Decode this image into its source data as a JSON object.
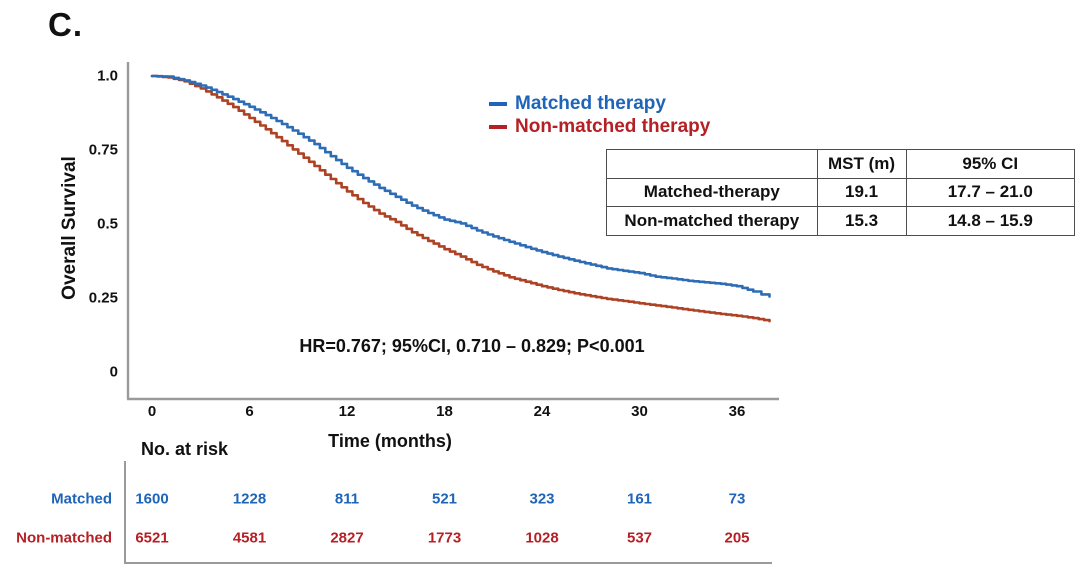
{
  "panel_label": "C.",
  "colors": {
    "matched_curve": "#2e6db5",
    "non_matched_curve": "#ad4224",
    "matched_text": "#1e64b8",
    "non_matched_text": "#b52025",
    "axis_line": "#9a9a9a"
  },
  "legend": [
    {
      "label": "Matched therapy",
      "color": "#1e64b8"
    },
    {
      "label": "Non-matched therapy",
      "color": "#b52025"
    }
  ],
  "annotation": "HR=0.767; 95%CI, 0.710 – 0.829; P<0.001",
  "stats_table": {
    "headers": [
      "",
      "MST (m)",
      "95% CI"
    ],
    "rows": [
      [
        "Matched-therapy",
        "19.1",
        "17.7 – 21.0"
      ],
      [
        "Non-matched therapy",
        "15.3",
        "14.8 – 15.9"
      ]
    ]
  },
  "axes": {
    "ylabel": "Overall Survival",
    "xlabel": "Time (months)",
    "yticks": [
      {
        "label": "1.0",
        "value": 1.0
      },
      {
        "label": "0.75",
        "value": 0.75
      },
      {
        "label": "0.5",
        "value": 0.5
      },
      {
        "label": "0.25",
        "value": 0.25
      },
      {
        "label": "0",
        "value": 0
      }
    ],
    "xticks": [
      {
        "label": "0",
        "value": 0
      },
      {
        "label": "6",
        "value": 6
      },
      {
        "label": "12",
        "value": 12
      },
      {
        "label": "18",
        "value": 18
      },
      {
        "label": "24",
        "value": 24
      },
      {
        "label": "30",
        "value": 30
      },
      {
        "label": "36",
        "value": 36
      }
    ]
  },
  "risk_table": {
    "title": "No. at risk",
    "time_columns": [
      0,
      6,
      12,
      18,
      24,
      30,
      36
    ],
    "rows": [
      {
        "label": "Matched",
        "color": "#1e64b8",
        "values": [
          "1600",
          "1228",
          "811",
          "521",
          "323",
          "161",
          "73"
        ]
      },
      {
        "label": "Non-matched",
        "color": "#b52025",
        "values": [
          "6521",
          "4581",
          "2827",
          "1773",
          "1028",
          "537",
          "205"
        ]
      }
    ]
  },
  "chart_data": {
    "type": "line",
    "style": "kaplan-meier-step",
    "title": "",
    "xlabel": "Time (months)",
    "ylabel": "Overall Survival",
    "xlim": [
      0,
      38.5
    ],
    "ylim": [
      0,
      1.0
    ],
    "grid": false,
    "legend_position": "upper right",
    "series": [
      {
        "name": "Matched therapy",
        "color": "#2e6db5",
        "median_survival_months": 19.1,
        "ci95": "17.7 – 21.0",
        "points": [
          [
            0,
            1.0
          ],
          [
            1,
            0.998
          ],
          [
            2,
            0.985
          ],
          [
            3,
            0.968
          ],
          [
            4,
            0.946
          ],
          [
            5,
            0.922
          ],
          [
            6,
            0.896
          ],
          [
            7,
            0.868
          ],
          [
            8,
            0.838
          ],
          [
            9,
            0.805
          ],
          [
            10,
            0.77
          ],
          [
            11,
            0.729
          ],
          [
            12,
            0.69
          ],
          [
            13,
            0.655
          ],
          [
            14,
            0.622
          ],
          [
            15,
            0.592
          ],
          [
            16,
            0.562
          ],
          [
            17,
            0.537
          ],
          [
            18,
            0.515
          ],
          [
            19,
            0.502
          ],
          [
            20,
            0.478
          ],
          [
            21,
            0.458
          ],
          [
            22,
            0.44
          ],
          [
            23,
            0.422
          ],
          [
            24,
            0.405
          ],
          [
            25,
            0.39
          ],
          [
            26,
            0.376
          ],
          [
            27,
            0.363
          ],
          [
            28,
            0.35
          ],
          [
            29,
            0.342
          ],
          [
            30,
            0.334
          ],
          [
            31,
            0.322
          ],
          [
            32,
            0.316
          ],
          [
            33,
            0.308
          ],
          [
            34,
            0.303
          ],
          [
            35,
            0.298
          ],
          [
            36,
            0.29
          ],
          [
            37,
            0.272
          ],
          [
            37.5,
            0.262
          ],
          [
            38,
            0.255
          ]
        ]
      },
      {
        "name": "Non-matched therapy",
        "color": "#ad4224",
        "median_survival_months": 15.3,
        "ci95": "14.8 – 15.9",
        "points": [
          [
            0,
            1.0
          ],
          [
            1,
            0.995
          ],
          [
            2,
            0.982
          ],
          [
            3,
            0.958
          ],
          [
            4,
            0.928
          ],
          [
            5,
            0.895
          ],
          [
            6,
            0.858
          ],
          [
            7,
            0.82
          ],
          [
            8,
            0.78
          ],
          [
            9,
            0.738
          ],
          [
            10,
            0.696
          ],
          [
            11,
            0.652
          ],
          [
            12,
            0.61
          ],
          [
            13,
            0.571
          ],
          [
            14,
            0.535
          ],
          [
            15,
            0.507
          ],
          [
            16,
            0.472
          ],
          [
            17,
            0.443
          ],
          [
            18,
            0.415
          ],
          [
            19,
            0.39
          ],
          [
            20,
            0.362
          ],
          [
            21,
            0.34
          ],
          [
            22,
            0.32
          ],
          [
            23,
            0.305
          ],
          [
            24,
            0.29
          ],
          [
            25,
            0.277
          ],
          [
            26,
            0.266
          ],
          [
            27,
            0.256
          ],
          [
            28,
            0.247
          ],
          [
            29,
            0.24
          ],
          [
            30,
            0.232
          ],
          [
            31,
            0.225
          ],
          [
            32,
            0.218
          ],
          [
            33,
            0.21
          ],
          [
            34,
            0.203
          ],
          [
            35,
            0.196
          ],
          [
            36,
            0.19
          ],
          [
            37,
            0.182
          ],
          [
            38,
            0.172
          ]
        ]
      }
    ],
    "hazard_ratio_annotation": "HR=0.767; 95%CI, 0.710 – 0.829; P<0.001"
  }
}
